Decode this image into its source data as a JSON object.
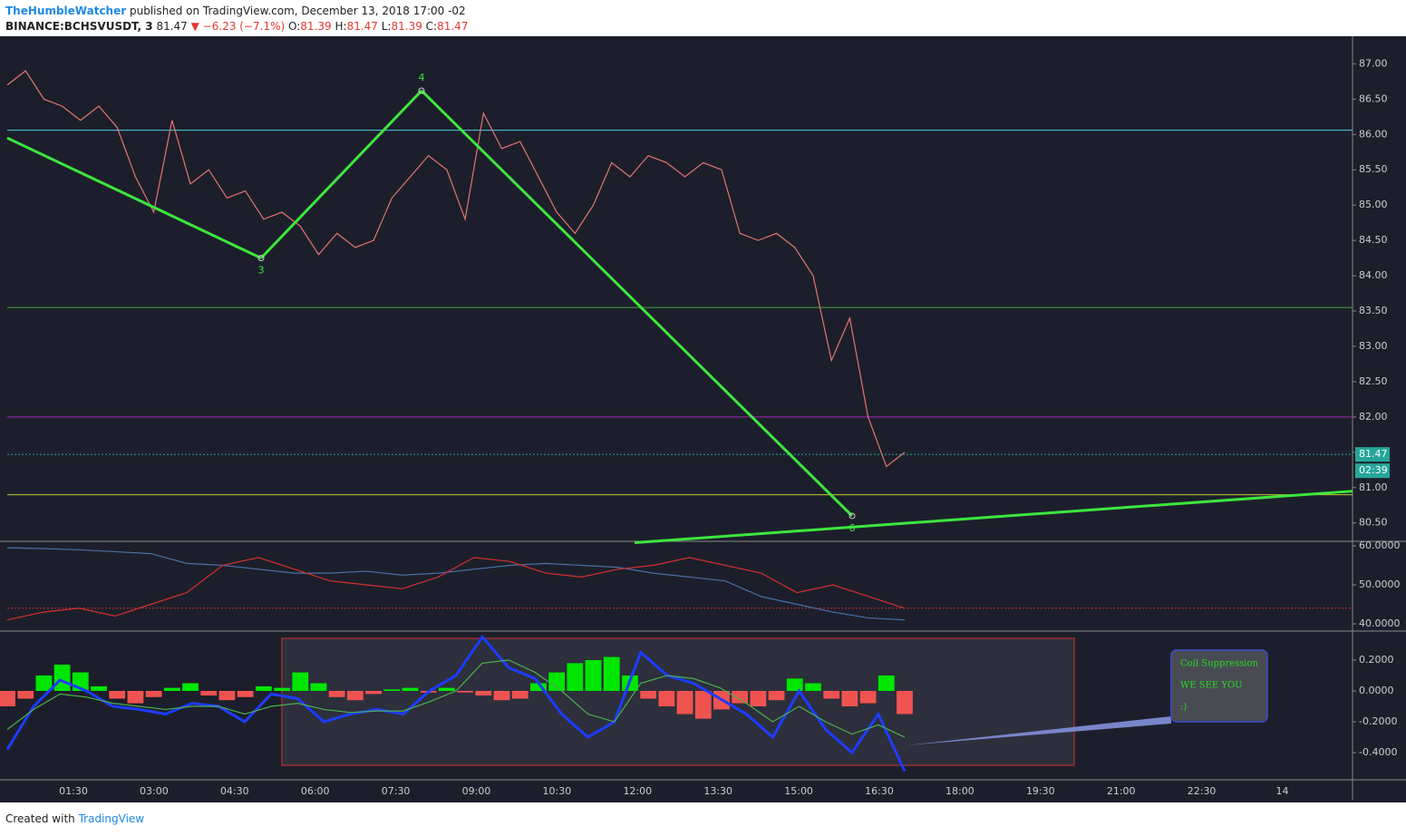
{
  "header": {
    "author": "TheHumbleWatcher",
    "published": "published on TradingView.com, December 13, 2018 17:00 -02",
    "symbol": "BINANCE:BCHSVUSDT, 3",
    "last": "81.47",
    "change": "▼ −6.23 (−7.1%)",
    "open_label": "O:",
    "open": "81.39",
    "high_label": "H:",
    "high": "81.47",
    "low_label": "L:",
    "low": "81.39",
    "close_label": "C:",
    "close": "81.47"
  },
  "chart_data": [
    {
      "type": "line",
      "color": "#e57373",
      "values": [
        86.7,
        86.9,
        86.5,
        86.4,
        86.2,
        86.4,
        86.1,
        85.4,
        84.9,
        86.2,
        85.3,
        85.5,
        85.1,
        85.2,
        84.8,
        84.9,
        84.7,
        84.3,
        84.6,
        84.4,
        84.5,
        85.1,
        85.4,
        85.7,
        85.5,
        84.8,
        86.3,
        85.8,
        85.9,
        85.4,
        84.9,
        84.6,
        85.0,
        85.6,
        85.4,
        85.7,
        85.6,
        85.4,
        85.6,
        85.5,
        84.6,
        84.5,
        84.6,
        84.4,
        84.0,
        82.8,
        83.4,
        82.0,
        81.3,
        81.5
      ],
      "ylim": [
        80.24,
        87.39
      ],
      "yticks": [
        {
          "value": 80.5,
          "label": "80.50"
        },
        {
          "value": 81,
          "label": "81.00"
        },
        {
          "value": 81.5,
          "label": "81.50"
        },
        {
          "value": 82,
          "label": "82.00"
        },
        {
          "value": 82.5,
          "label": "82.50"
        },
        {
          "value": 83,
          "label": "83.00"
        },
        {
          "value": 83.5,
          "label": "83.50"
        },
        {
          "value": 84,
          "label": "84.00"
        },
        {
          "value": 84.5,
          "label": "84.50"
        },
        {
          "value": 85,
          "label": "85.00"
        },
        {
          "value": 85.5,
          "label": "85.50"
        },
        {
          "value": 86,
          "label": "86.00"
        },
        {
          "value": 86.5,
          "label": "86.50"
        },
        {
          "value": 87,
          "label": "87.00"
        }
      ],
      "xticks": [
        "01:30",
        "03:00",
        "04:30",
        "06:00",
        "07:30",
        "09:00",
        "10:30",
        "12:00",
        "13:30",
        "15:00",
        "16:30",
        "18:00",
        "19:30",
        "21:00",
        "22:30",
        "14"
      ],
      "levels": [
        {
          "value": 86.06,
          "color": "#4dd0e1"
        },
        {
          "value": 83.55,
          "color": "#43a047"
        },
        {
          "value": 82.0,
          "color": "#9c27b0"
        },
        {
          "value": 80.9,
          "color": "#c0ca33"
        }
      ],
      "current": {
        "value": 81.47,
        "label": "81.47",
        "countdown": "02:39",
        "color": "#26a69a"
      },
      "pattern": {
        "color": "#3ee63e",
        "points": [
          {
            "label": null,
            "value": 85.95
          },
          {
            "label": "3",
            "value": 84.25
          },
          {
            "label": "4",
            "value": 86.62
          },
          {
            "label": "6",
            "value": 80.6
          }
        ],
        "trend": [
          80.22,
          80.95
        ]
      }
    },
    {
      "type": "line",
      "ylim": [
        38.37,
        60.93
      ],
      "yticks": [
        {
          "value": 40,
          "label": "40.0000"
        },
        {
          "value": 50,
          "label": "50.0000"
        },
        {
          "value": 60,
          "label": "60.0000"
        }
      ],
      "level": {
        "value": 44,
        "color": "#d32f2f"
      },
      "series": [
        {
          "color": "#4a6fa5",
          "values": [
            59.5,
            59.3,
            59.0,
            58.5,
            58,
            55.5,
            55,
            54,
            53,
            53,
            53.5,
            52.5,
            53,
            54,
            55,
            55.5,
            55,
            54.5,
            53,
            52,
            51,
            47,
            45,
            43,
            41.5,
            41
          ]
        },
        {
          "color": "#d32f2f",
          "values": [
            41,
            43,
            44,
            42,
            45,
            48,
            55,
            57,
            54,
            51,
            50,
            49,
            52,
            57,
            56,
            53,
            52,
            54,
            55,
            57,
            55,
            53,
            48,
            50,
            47,
            44
          ]
        }
      ]
    },
    {
      "type": "bar",
      "ylim": [
        -0.576,
        0.382
      ],
      "colors": {
        "up": "#00e600",
        "down": "#ef5350"
      },
      "yticks": [
        {
          "value": 0.2,
          "label": "0.2000"
        },
        {
          "value": 0,
          "label": "0.0000"
        },
        {
          "value": -0.2,
          "label": "-0.2000"
        },
        {
          "value": -0.4,
          "label": "-0.4000"
        }
      ],
      "values": [
        -0.1,
        -0.05,
        0.1,
        0.17,
        0.12,
        0.03,
        -0.05,
        -0.08,
        -0.04,
        0.02,
        0.05,
        -0.03,
        -0.06,
        -0.04,
        0.03,
        0.02,
        0.12,
        0.05,
        -0.04,
        -0.06,
        -0.02,
        0.01,
        0.02,
        -0.01,
        0.02,
        -0.01,
        -0.03,
        -0.06,
        -0.05,
        0.05,
        0.12,
        0.18,
        0.2,
        0.22,
        0.1,
        -0.05,
        -0.1,
        -0.15,
        -0.18,
        -0.12,
        -0.08,
        -0.1,
        -0.06,
        0.08,
        0.05,
        -0.05,
        -0.1,
        -0.08,
        0.1,
        -0.15
      ],
      "series": [
        {
          "color": "#1e3cff",
          "values": [
            -0.38,
            -0.1,
            0.07,
            0.0,
            -0.1,
            -0.12,
            -0.15,
            -0.08,
            -0.1,
            -0.2,
            -0.02,
            -0.05,
            -0.2,
            -0.15,
            -0.12,
            -0.15,
            0.0,
            0.1,
            0.35,
            0.15,
            0.08,
            -0.15,
            -0.3,
            -0.2,
            0.25,
            0.1,
            0.05,
            -0.05,
            -0.15,
            -0.3,
            0.0,
            -0.25,
            -0.4,
            -0.15,
            -0.52
          ]
        },
        {
          "color": "#4caf50",
          "values": [
            -0.25,
            -0.12,
            -0.02,
            -0.04,
            -0.08,
            -0.1,
            -0.12,
            -0.1,
            -0.1,
            -0.15,
            -0.1,
            -0.08,
            -0.12,
            -0.14,
            -0.13,
            -0.13,
            -0.07,
            0.0,
            0.18,
            0.2,
            0.12,
            0.0,
            -0.15,
            -0.2,
            0.05,
            0.1,
            0.08,
            0.02,
            -0.08,
            -0.2,
            -0.1,
            -0.2,
            -0.28,
            -0.22,
            -0.3
          ]
        }
      ],
      "note": {
        "lines": [
          "Coil Suppression",
          "WE SEE YOU",
          ":)"
        ]
      }
    }
  ],
  "footer": {
    "text": "Created with",
    "brand": "TradingView"
  }
}
